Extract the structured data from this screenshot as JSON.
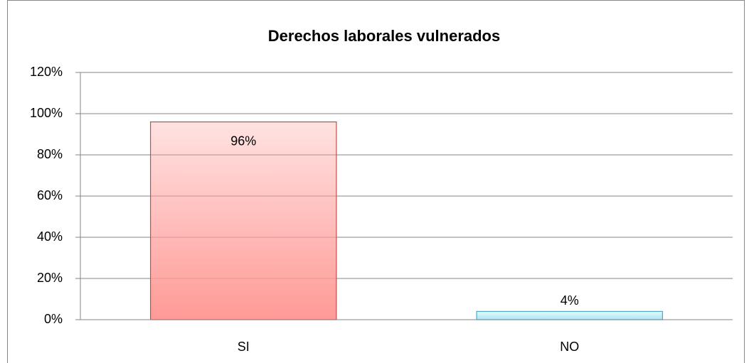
{
  "chart_data": {
    "type": "bar",
    "title": "Derechos laborales vulnerados",
    "categories": [
      "SI",
      "NO"
    ],
    "values": [
      96,
      4
    ],
    "value_labels": [
      "96%",
      "4%"
    ],
    "colors": [
      "#ff9a96",
      "#a8e6f2"
    ],
    "edge_colors": [
      "#c0504d",
      "#4bacc6"
    ],
    "ylim": [
      0,
      120
    ],
    "yticks": [
      {
        "value": 0,
        "label": "0%"
      },
      {
        "value": 20,
        "label": "20%"
      },
      {
        "value": 40,
        "label": "40%"
      },
      {
        "value": 60,
        "label": "60%"
      },
      {
        "value": 80,
        "label": "80%"
      },
      {
        "value": 100,
        "label": "100%"
      },
      {
        "value": 120,
        "label": "120%"
      }
    ],
    "grid": true
  }
}
